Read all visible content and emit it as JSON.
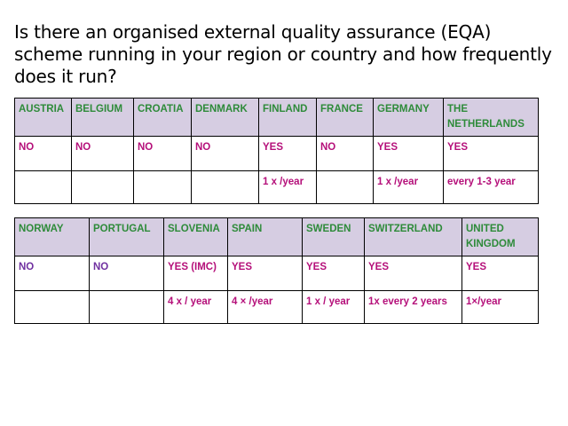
{
  "title": "Is there an organised external quality assurance (EQA) scheme running  in your region or country and how frequently does it run?",
  "table1": {
    "countries": [
      "AUSTRIA",
      "BELGIUM",
      "CROATIA",
      "DENMARK",
      "FINLAND",
      "FRANCE",
      "GERMANY",
      "THE NETHERLANDS"
    ],
    "answers": [
      "NO",
      "NO",
      "NO",
      "NO",
      "YES",
      "NO",
      "YES",
      "YES"
    ],
    "frequency": [
      "",
      "",
      "",
      "",
      "1 x /year",
      "",
      "1 x /year",
      "every 1-3 year"
    ]
  },
  "table2": {
    "countries": [
      "NORWAY",
      "PORTUGAL",
      "SLOVENIA",
      "SPAIN",
      "SWEDEN",
      "SWITZERLAND",
      "UNITED KINGDOM"
    ],
    "answers": [
      "NO",
      "NO",
      "YES (IMC)",
      "YES",
      "YES",
      "YES",
      "YES"
    ],
    "frequency": [
      "",
      "",
      "4 x / year",
      "4 × /year",
      "1 x / year",
      "1x every 2 years",
      "1×/year"
    ]
  },
  "colors": {
    "header_bg": "#d6cde2",
    "country_text": "#2e8b3a",
    "answer_text": "#b5107a",
    "answer_text_alt": "#7030a0"
  }
}
